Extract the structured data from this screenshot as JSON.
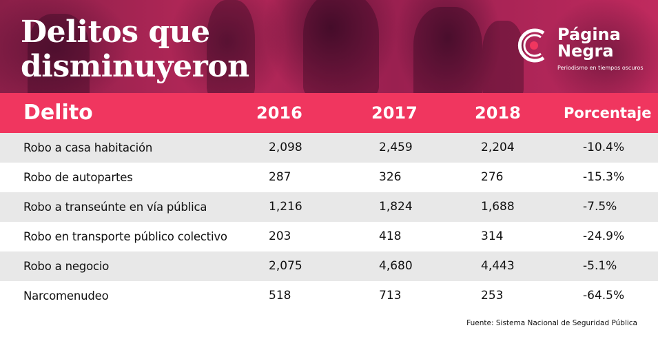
{
  "title": "Delitos que disminuyeron",
  "logo": {
    "name_line1": "Página",
    "name_line2": "Negra",
    "tagline": "Periodismo en tiempos oscuros",
    "accent_color": "#f0365f"
  },
  "chart_data": {
    "type": "table",
    "columns": [
      "Delito",
      "2016",
      "2017",
      "2018",
      "Porcentaje"
    ],
    "rows": [
      {
        "delito": "Robo a casa habitación",
        "y2016": "2,098",
        "y2017": "2,459",
        "y2018": "2,204",
        "porcentaje": "-10.4%"
      },
      {
        "delito": "Robo de autopartes",
        "y2016": "287",
        "y2017": "326",
        "y2018": "276",
        "porcentaje": "-15.3%"
      },
      {
        "delito": "Robo a transeúnte en vía pública",
        "y2016": "1,216",
        "y2017": "1,824",
        "y2018": "1,688",
        "porcentaje": "-7.5%"
      },
      {
        "delito": "Robo en transporte público colectivo",
        "y2016": "203",
        "y2017": "418",
        "y2018": "314",
        "porcentaje": "-24.9%"
      },
      {
        "delito": "Robo a negocio",
        "y2016": "2,075",
        "y2017": "4,680",
        "y2018": "4,443",
        "porcentaje": "-5.1%"
      },
      {
        "delito": "Narcomenudeo",
        "y2016": "518",
        "y2017": "713",
        "y2018": "253",
        "porcentaje": "-64.5%"
      }
    ],
    "header_color": "#f0365f",
    "row_shade_color": "#e8e8e8"
  },
  "source": "Fuente: Sistema Nacional de Seguridad Pública"
}
